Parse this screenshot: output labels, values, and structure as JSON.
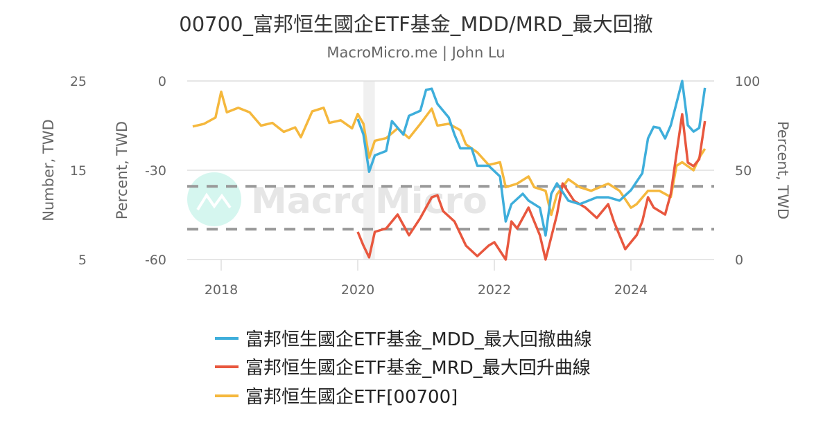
{
  "title": "00700_富邦恒生國企ETF基金_MDD/MRD_最大回撤",
  "subtitle": "MacroMicro.me | John Lu",
  "watermark": "MacroMicro",
  "chart_data": {
    "type": "line",
    "title": "00700_富邦恒生國企ETF基金_MDD/MRD_最大回撤",
    "subtitle": "MacroMicro.me | John Lu",
    "x_ticks": [
      "2018",
      "2020",
      "2022",
      "2024"
    ],
    "axes": {
      "left_number": {
        "label": "Number, TWD",
        "range": [
          5,
          25
        ],
        "ticks": [
          "25",
          "15",
          "5"
        ]
      },
      "left_percent": {
        "label": "Percent, TWD",
        "range": [
          -60,
          0
        ],
        "ticks": [
          "0",
          "-30",
          "-60"
        ]
      },
      "right_percent": {
        "label": "Percent, TWD",
        "range": [
          0,
          100
        ],
        "ticks": [
          "100",
          "50",
          "0"
        ]
      }
    },
    "grid": true,
    "legend_position": "bottom",
    "shaded_period": [
      "2020-02",
      "2020-04"
    ],
    "reference_lines_right_axis": [
      41,
      17
    ],
    "series": [
      {
        "name": "富邦恒生國企ETF基金_MDD_最大回撤曲線",
        "axis": "left_percent",
        "color": "#3eaedb",
        "points": [
          [
            "2020-01",
            -12.8
          ],
          [
            "2020-02",
            -18.0
          ],
          [
            "2020-03",
            -30.5
          ],
          [
            "2020-04",
            -25.0
          ],
          [
            "2020-06",
            -23.5
          ],
          [
            "2020-07",
            -13.5
          ],
          [
            "2020-09",
            -18.0
          ],
          [
            "2020-10",
            -11.7
          ],
          [
            "2020-12",
            -10.0
          ],
          [
            "2021-01",
            -3.0
          ],
          [
            "2021-02",
            -2.6
          ],
          [
            "2021-03",
            -7.7
          ],
          [
            "2021-05",
            -12.3
          ],
          [
            "2021-06",
            -18.0
          ],
          [
            "2021-07",
            -22.6
          ],
          [
            "2021-09",
            -22.6
          ],
          [
            "2021-10",
            -28.5
          ],
          [
            "2021-12",
            -28.5
          ],
          [
            "2022-02",
            -32.1
          ],
          [
            "2022-03",
            -47.2
          ],
          [
            "2022-04",
            -41.4
          ],
          [
            "2022-06",
            -37.9
          ],
          [
            "2022-07",
            -40.2
          ],
          [
            "2022-09",
            -42.6
          ],
          [
            "2022-10",
            -51.9
          ],
          [
            "2022-11",
            -37.9
          ],
          [
            "2022-12",
            -34.4
          ],
          [
            "2023-02",
            -40.2
          ],
          [
            "2023-04",
            -41.4
          ],
          [
            "2023-07",
            -39.1
          ],
          [
            "2023-09",
            -39.1
          ],
          [
            "2023-11",
            -40.2
          ],
          [
            "2024-01",
            -36.7
          ],
          [
            "2024-03",
            -31.0
          ],
          [
            "2024-04",
            -19.3
          ],
          [
            "2024-05",
            -15.4
          ],
          [
            "2024-06",
            -15.8
          ],
          [
            "2024-07",
            -19.3
          ],
          [
            "2024-08",
            -14.9
          ],
          [
            "2024-10",
            0
          ],
          [
            "2024-11",
            -14.9
          ],
          [
            "2024-12",
            -17.0
          ],
          [
            "2025-01",
            -15.8
          ],
          [
            "2025-02",
            -2.3
          ]
        ]
      },
      {
        "name": "富邦恒生國企ETF基金_MRD_最大回升曲線",
        "axis": "right_percent",
        "color": "#e8573e",
        "points": [
          [
            "2020-01",
            15.5
          ],
          [
            "2020-02",
            7.8
          ],
          [
            "2020-03",
            1.2
          ],
          [
            "2020-04",
            15.5
          ],
          [
            "2020-06",
            17.4
          ],
          [
            "2020-07",
            21.3
          ],
          [
            "2020-08",
            25.2
          ],
          [
            "2020-10",
            13.6
          ],
          [
            "2020-12",
            23.3
          ],
          [
            "2021-02",
            34.9
          ],
          [
            "2021-03",
            36.0
          ],
          [
            "2021-04",
            27.1
          ],
          [
            "2021-06",
            21.3
          ],
          [
            "2021-08",
            7.8
          ],
          [
            "2021-10",
            1.9
          ],
          [
            "2021-12",
            7.8
          ],
          [
            "2022-01",
            9.7
          ],
          [
            "2022-03",
            0
          ],
          [
            "2022-04",
            21.3
          ],
          [
            "2022-05",
            17.4
          ],
          [
            "2022-07",
            29.1
          ],
          [
            "2022-09",
            13.6
          ],
          [
            "2022-10",
            0
          ],
          [
            "2022-12",
            25.2
          ],
          [
            "2023-01",
            42.6
          ],
          [
            "2023-03",
            32.9
          ],
          [
            "2023-05",
            29.1
          ],
          [
            "2023-07",
            23.3
          ],
          [
            "2023-09",
            31.0
          ],
          [
            "2023-10",
            21.3
          ],
          [
            "2023-12",
            5.8
          ],
          [
            "2024-02",
            13.6
          ],
          [
            "2024-03",
            21.3
          ],
          [
            "2024-04",
            34.9
          ],
          [
            "2024-05",
            29.1
          ],
          [
            "2024-07",
            25.2
          ],
          [
            "2024-08",
            36.9
          ],
          [
            "2024-10",
            81.4
          ],
          [
            "2024-11",
            54.3
          ],
          [
            "2024-12",
            52.3
          ],
          [
            "2025-01",
            56.2
          ],
          [
            "2025-02",
            77.5
          ]
        ]
      },
      {
        "name": "富邦恒生國企ETF[00700]",
        "axis": "left_number",
        "color": "#f5b83d",
        "points": [
          [
            "2017-08",
            19.9
          ],
          [
            "2017-10",
            20.2
          ],
          [
            "2017-12",
            20.9
          ],
          [
            "2018-01",
            23.8
          ],
          [
            "2018-02",
            21.5
          ],
          [
            "2018-04",
            22.0
          ],
          [
            "2018-06",
            21.5
          ],
          [
            "2018-08",
            20.0
          ],
          [
            "2018-10",
            20.3
          ],
          [
            "2018-12",
            19.3
          ],
          [
            "2019-02",
            19.8
          ],
          [
            "2019-03",
            18.7
          ],
          [
            "2019-05",
            21.6
          ],
          [
            "2019-07",
            22.0
          ],
          [
            "2019-08",
            20.3
          ],
          [
            "2019-10",
            20.6
          ],
          [
            "2019-12",
            19.7
          ],
          [
            "2020-01",
            21.3
          ],
          [
            "2020-02",
            20.2
          ],
          [
            "2020-03",
            16.4
          ],
          [
            "2020-04",
            18.3
          ],
          [
            "2020-06",
            18.6
          ],
          [
            "2020-08",
            19.7
          ],
          [
            "2020-10",
            18.6
          ],
          [
            "2020-12",
            20.2
          ],
          [
            "2021-02",
            21.9
          ],
          [
            "2021-03",
            20.0
          ],
          [
            "2021-05",
            20.2
          ],
          [
            "2021-07",
            19.5
          ],
          [
            "2021-08",
            17.9
          ],
          [
            "2021-10",
            17.0
          ],
          [
            "2021-12",
            15.6
          ],
          [
            "2022-02",
            15.9
          ],
          [
            "2022-03",
            13.1
          ],
          [
            "2022-05",
            13.5
          ],
          [
            "2022-07",
            14.3
          ],
          [
            "2022-08",
            13.1
          ],
          [
            "2022-10",
            12.7
          ],
          [
            "2022-11",
            10.0
          ],
          [
            "2022-12",
            12.3
          ],
          [
            "2023-02",
            14.0
          ],
          [
            "2023-04",
            13.1
          ],
          [
            "2023-06",
            12.7
          ],
          [
            "2023-09",
            13.5
          ],
          [
            "2023-11",
            12.7
          ],
          [
            "2024-01",
            10.8
          ],
          [
            "2024-02",
            11.2
          ],
          [
            "2024-04",
            12.7
          ],
          [
            "2024-06",
            12.7
          ],
          [
            "2024-08",
            12.0
          ],
          [
            "2024-09",
            15.5
          ],
          [
            "2024-10",
            15.9
          ],
          [
            "2024-12",
            15.0
          ],
          [
            "2025-01",
            16.4
          ],
          [
            "2025-02",
            17.4
          ]
        ]
      }
    ]
  }
}
